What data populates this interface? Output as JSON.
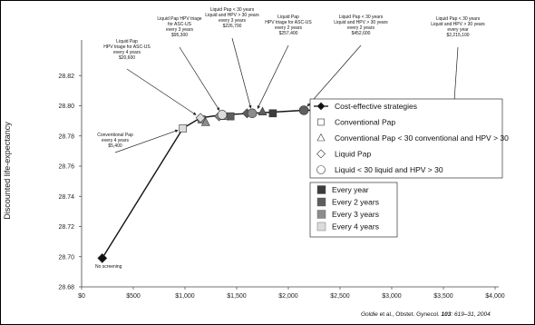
{
  "chart_data": {
    "type": "scatter",
    "title": "",
    "xlabel": "",
    "ylabel": "Discounted life-expectancy",
    "xlim": [
      0,
      4000
    ],
    "ylim": [
      28.68,
      28.84
    ],
    "x_ticks": [
      "$0",
      "$500",
      "$1,000",
      "$1,500",
      "$2,000",
      "$2,500",
      "$3,000",
      "$3,500",
      "$4,000"
    ],
    "y_ticks": [
      "28.68",
      "28.70",
      "28.72",
      "28.74",
      "28.76",
      "28.78",
      "28.80",
      "28.82"
    ],
    "frontier": {
      "name": "Cost-effective strategies",
      "points": [
        {
          "x": 200,
          "y": 28.699
        },
        {
          "x": 980,
          "y": 28.785
        },
        {
          "x": 1150,
          "y": 28.792
        },
        {
          "x": 1360,
          "y": 28.794
        },
        {
          "x": 1650,
          "y": 28.795
        },
        {
          "x": 2150,
          "y": 28.797
        },
        {
          "x": 3600,
          "y": 28.798
        }
      ]
    },
    "strategy_points": [
      {
        "x": 980,
        "y": 28.785,
        "marker": "square",
        "interval": "Every 4 years"
      },
      {
        "x": 1160,
        "y": 28.791,
        "marker": "square",
        "interval": "Every 3 years"
      },
      {
        "x": 1440,
        "y": 28.793,
        "marker": "square",
        "interval": "Every 2 years"
      },
      {
        "x": 1850,
        "y": 28.795,
        "marker": "square",
        "interval": "Every year"
      },
      {
        "x": 2450,
        "y": 28.795,
        "marker": "square",
        "interval": "Every year"
      },
      {
        "x": 1200,
        "y": 28.789,
        "marker": "triangle",
        "interval": "Every 3 years"
      },
      {
        "x": 1380,
        "y": 28.793,
        "marker": "triangle",
        "interval": "Every 3 years"
      },
      {
        "x": 1750,
        "y": 28.796,
        "marker": "triangle",
        "interval": "Every 2 years"
      },
      {
        "x": 2620,
        "y": 28.796,
        "marker": "triangle",
        "interval": "Every year"
      },
      {
        "x": 3150,
        "y": 28.797,
        "marker": "triangle",
        "interval": "Every year"
      },
      {
        "x": 1150,
        "y": 28.792,
        "marker": "diamond",
        "interval": "Every 4 years"
      },
      {
        "x": 1330,
        "y": 28.793,
        "marker": "diamond",
        "interval": "Every 3 years"
      },
      {
        "x": 1600,
        "y": 28.795,
        "marker": "diamond",
        "interval": "Every 2 years"
      },
      {
        "x": 1360,
        "y": 28.794,
        "marker": "circle",
        "interval": "Every 4 years"
      },
      {
        "x": 1650,
        "y": 28.795,
        "marker": "circle",
        "interval": "Every 3 years"
      },
      {
        "x": 2150,
        "y": 28.797,
        "marker": "circle",
        "interval": "Every 2 years"
      },
      {
        "x": 3600,
        "y": 28.798,
        "marker": "circle",
        "interval": "Every year"
      }
    ],
    "annotations": [
      {
        "lines": [
          "No screening"
        ],
        "x": 200,
        "y": 28.699
      },
      {
        "lines": [
          "Conventional Pap",
          "every 4 years",
          "$5,400"
        ],
        "x": 980,
        "y": 28.785
      },
      {
        "lines": [
          "Liquid Pap",
          "HPV triage for ASC-US",
          "every 4 years",
          "$20,600"
        ],
        "x": 1150,
        "y": 28.792
      },
      {
        "lines": [
          "Liquid Pap HPV triage",
          "for ASC-US",
          "every 3 years",
          "$95,300"
        ],
        "x": 1360,
        "y": 28.794
      },
      {
        "lines": [
          "Liquid Pap < 30 years",
          "Liquid and HPV > 30 years",
          "every 3 years",
          "$226,700"
        ],
        "x": 1650,
        "y": 28.795
      },
      {
        "lines": [
          "Liquid Pap",
          "HPV triage for ASC-US",
          "every 2 years",
          "$257,400"
        ],
        "x": 1680,
        "y": 28.795
      },
      {
        "lines": [
          "Liquid Pap < 30 years",
          "Liquid and HPV > 30 years",
          "every 2 years",
          "$452,600"
        ],
        "x": 2150,
        "y": 28.797
      },
      {
        "lines": [
          "Liquid Pap < 30 years",
          "Liquid and HPV > 30 years",
          "every year",
          "$2,215,100"
        ],
        "x": 3600,
        "y": 28.798
      }
    ],
    "legend_markers": [
      {
        "marker": "diamond-filled",
        "label": "Cost-effective strategies"
      },
      {
        "marker": "square",
        "label": "Conventional Pap"
      },
      {
        "marker": "triangle",
        "label": "Conventional Pap < 30 conventional and HPV > 30"
      },
      {
        "marker": "diamond",
        "label": "Liquid Pap"
      },
      {
        "marker": "circle",
        "label": "Liquid < 30 liquid and HPV > 30"
      }
    ],
    "legend_intervals": [
      {
        "label": "Every year",
        "color": "#3c3c3c"
      },
      {
        "label": "Every 2 years",
        "color": "#5e5e5e"
      },
      {
        "label": "Every 3 years",
        "color": "#8c8c8c"
      },
      {
        "label": "Every 4 years",
        "color": "#dcdcdc"
      }
    ],
    "grid": false,
    "legend_position": "right"
  },
  "citation": {
    "authors": "Goldie",
    "rest": " et al., Obstet. Gynecol. ",
    "volume": "103",
    "pages": ": 619–31, 2004"
  }
}
